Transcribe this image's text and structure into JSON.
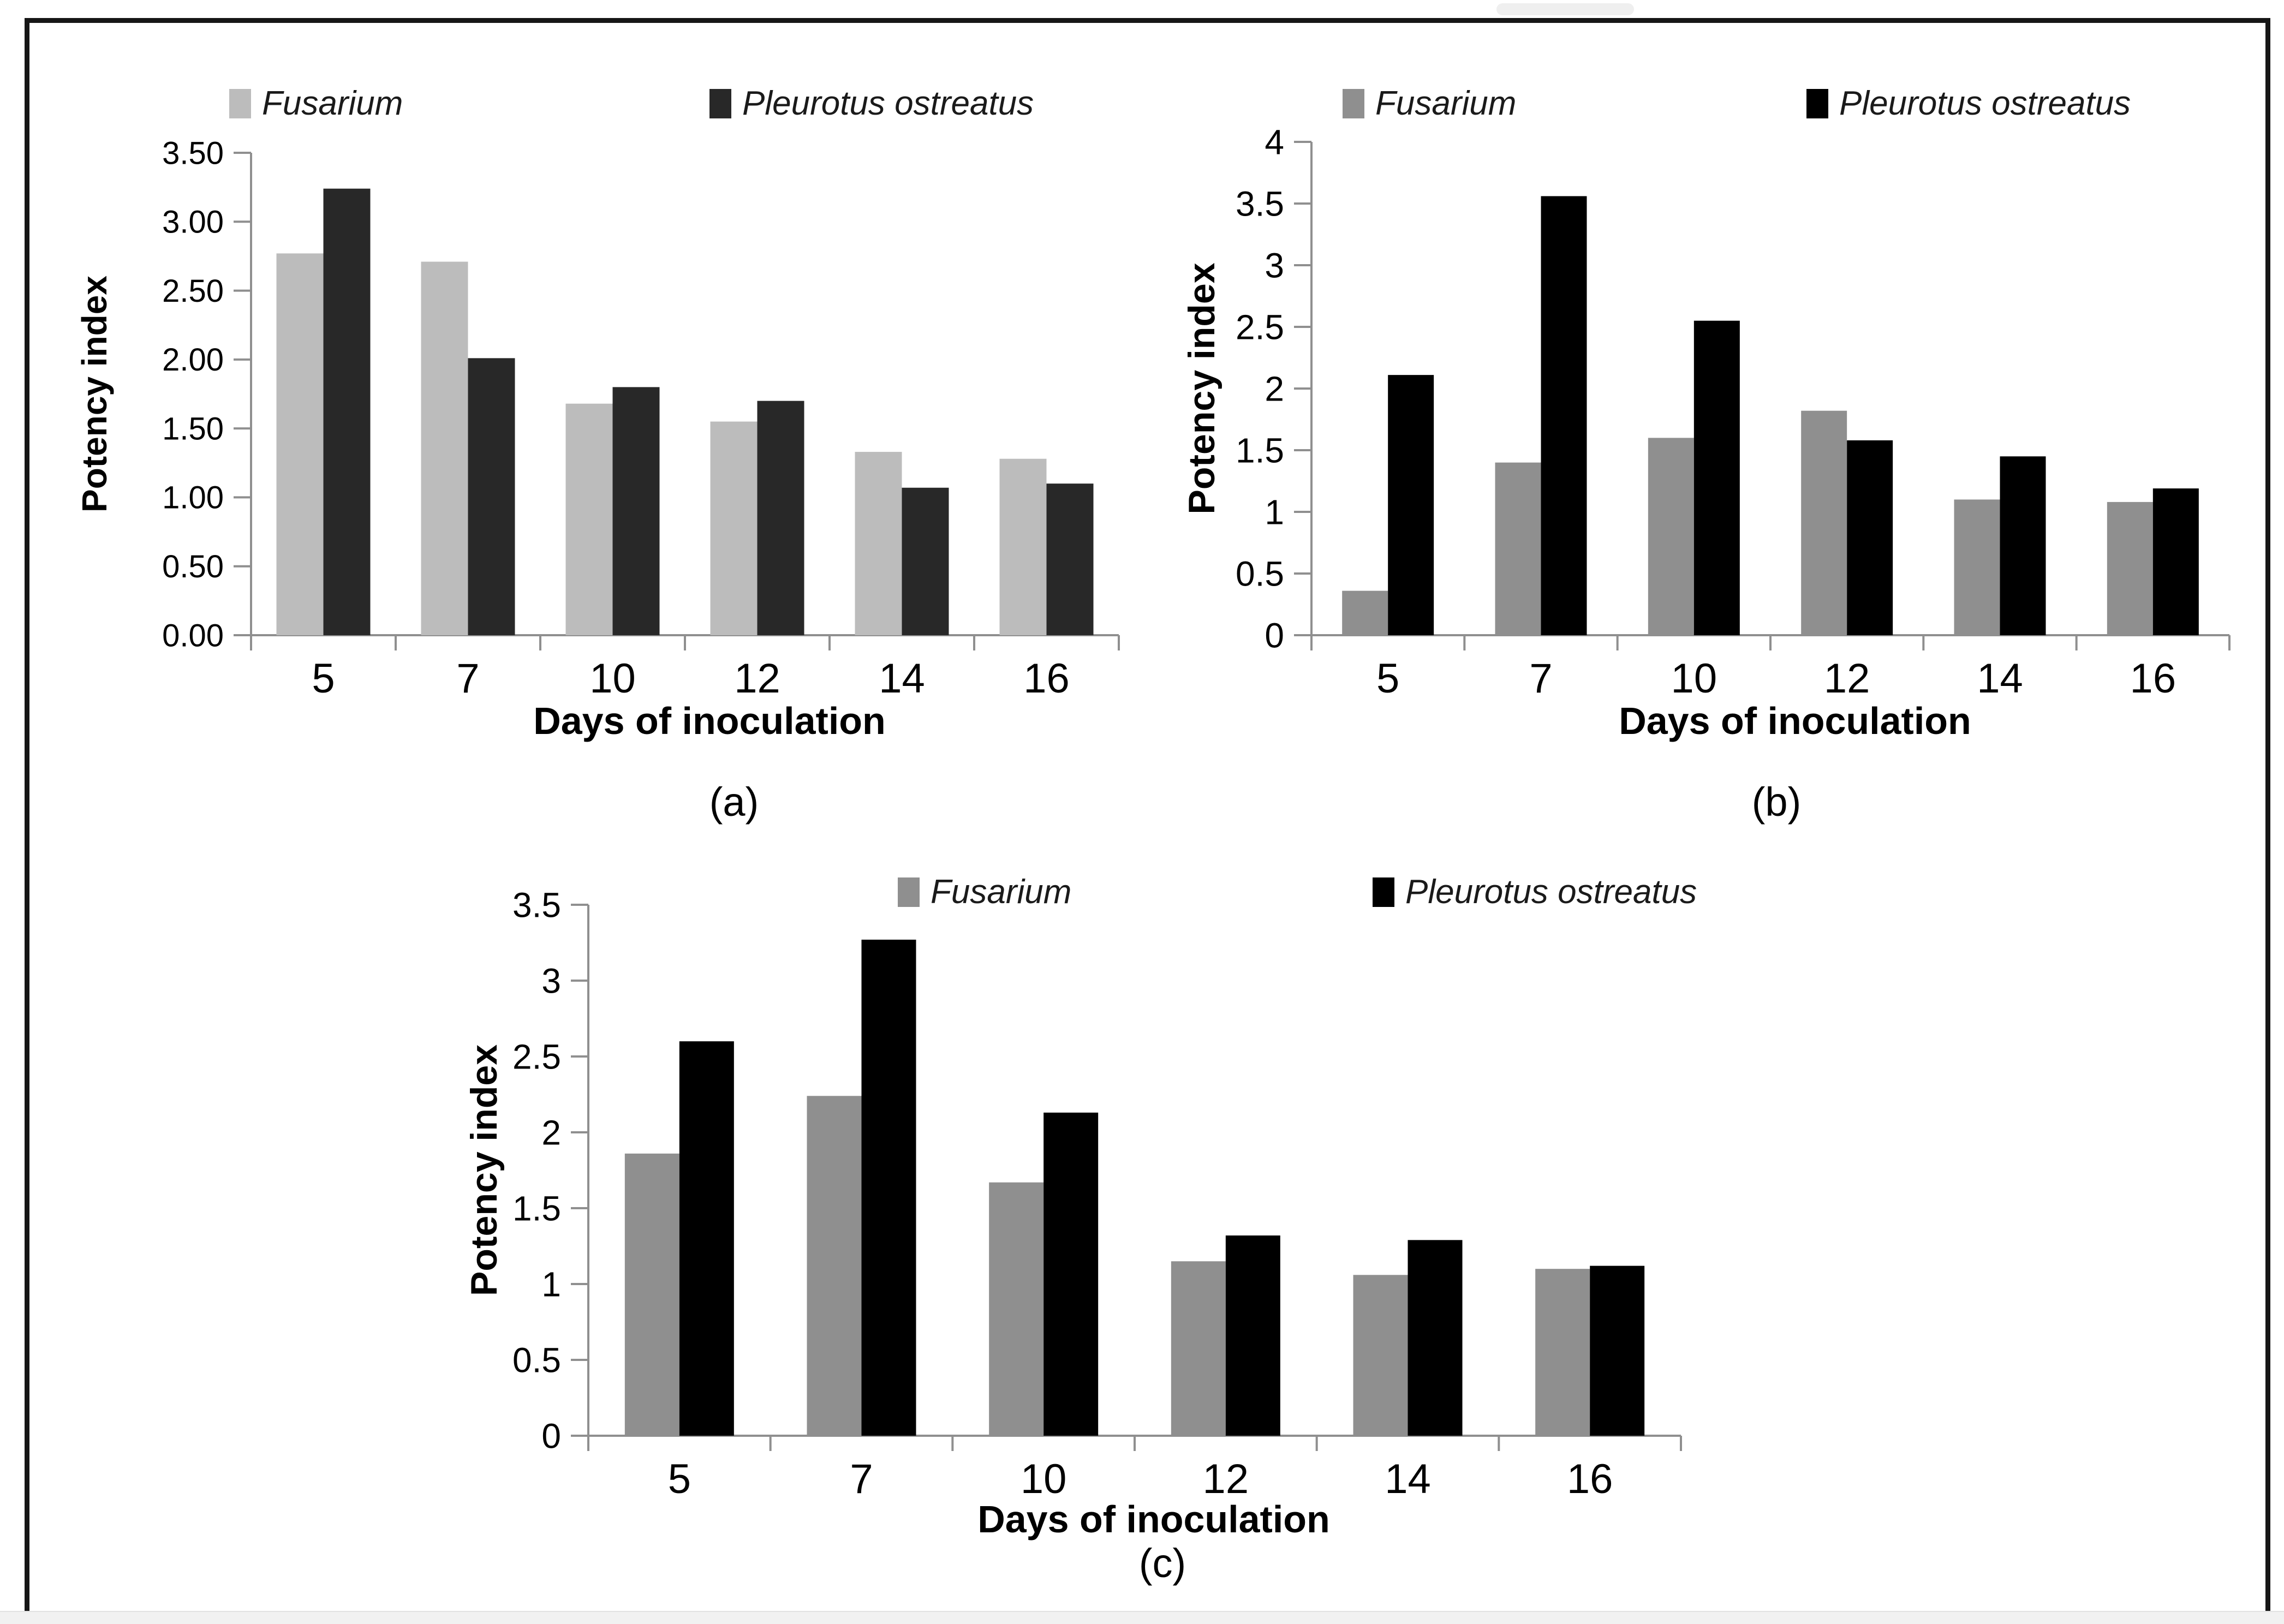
{
  "page": {
    "background": "#ffffff",
    "frame_color": "#161616",
    "bottom_strip_color": "#f1f1f1",
    "scroll_remnant_color": "#efefef",
    "axis_color": "#8f8f8f",
    "text_color": "#000000"
  },
  "chart_data": [
    {
      "id": "a",
      "type": "bar",
      "caption": "(a)",
      "xlabel": "Days of inoculation",
      "ylabel": "Potency index",
      "categories": [
        "5",
        "7",
        "10",
        "12",
        "14",
        "16"
      ],
      "series": [
        {
          "name": "Fusarium",
          "color": "#bcbcbc",
          "values": [
            2.77,
            2.71,
            1.68,
            1.55,
            1.33,
            1.28
          ]
        },
        {
          "name": "Pleurotus ostreatus",
          "color": "#282828",
          "values": [
            3.24,
            2.01,
            1.8,
            1.7,
            1.07,
            1.1
          ]
        }
      ],
      "ylim": [
        0,
        3.5
      ],
      "ytick_step": 0.5,
      "ytick_labels": [
        "0.00",
        "0.50",
        "1.00",
        "1.50",
        "2.00",
        "2.50",
        "3.00",
        "3.50"
      ],
      "grid": false,
      "legend_position": "top"
    },
    {
      "id": "b",
      "type": "bar",
      "caption": "(b)",
      "xlabel": "Days of inoculation",
      "ylabel": "Potency index",
      "categories": [
        "5",
        "7",
        "10",
        "12",
        "14",
        "16"
      ],
      "series": [
        {
          "name": "Fusarium",
          "color": "#8f8f8f",
          "values": [
            0.36,
            1.4,
            1.6,
            1.82,
            1.1,
            1.08
          ]
        },
        {
          "name": "Pleurotus ostreatus",
          "color": "#000000",
          "values": [
            2.11,
            3.56,
            2.55,
            1.58,
            1.45,
            1.19
          ]
        }
      ],
      "ylim": [
        0,
        4
      ],
      "ytick_step": 0.5,
      "ytick_labels": [
        "0",
        "0.5",
        "1",
        "1.5",
        "2",
        "2.5",
        "3",
        "3.5",
        "4"
      ],
      "grid": false,
      "legend_position": "top"
    },
    {
      "id": "c",
      "type": "bar",
      "caption": "(c)",
      "xlabel": "Days of inoculation",
      "ylabel": "Potency index",
      "categories": [
        "5",
        "7",
        "10",
        "12",
        "14",
        "16"
      ],
      "series": [
        {
          "name": "Fusarium",
          "color": "#8f8f8f",
          "values": [
            1.86,
            2.24,
            1.67,
            1.15,
            1.06,
            1.1
          ]
        },
        {
          "name": "Pleurotus ostreatus",
          "color": "#000000",
          "values": [
            2.6,
            3.27,
            2.13,
            1.32,
            1.29,
            1.12
          ]
        }
      ],
      "ylim": [
        0,
        3.5
      ],
      "ytick_step": 0.5,
      "ytick_labels": [
        "0",
        "0.5",
        "1",
        "1.5",
        "2",
        "2.5",
        "3",
        "3.5"
      ],
      "grid": false,
      "legend_position": "top"
    }
  ]
}
